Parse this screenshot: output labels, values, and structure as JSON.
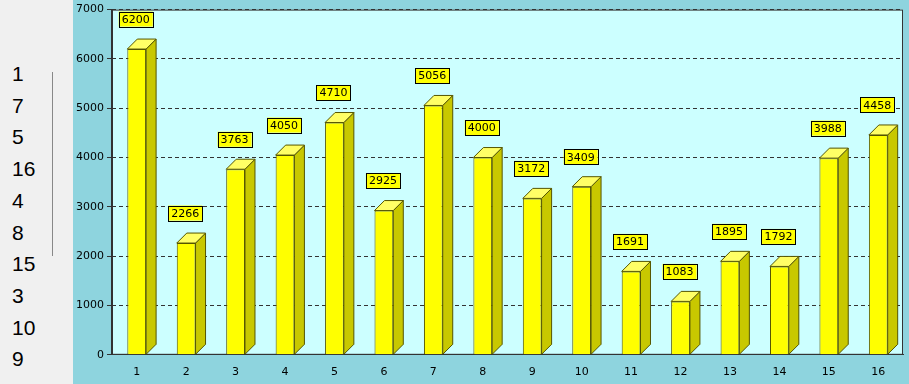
{
  "chart_data": {
    "type": "bar",
    "categories": [
      "1",
      "2",
      "3",
      "4",
      "5",
      "6",
      "7",
      "8",
      "9",
      "10",
      "11",
      "12",
      "13",
      "14",
      "15",
      "16"
    ],
    "values": [
      6200,
      2266,
      3763,
      4050,
      4710,
      2925,
      5056,
      4000,
      3172,
      3409,
      1691,
      1083,
      1895,
      1792,
      3988,
      4458
    ],
    "color": "#ffff00",
    "ylim": [
      0,
      7000
    ],
    "yticks": [
      0,
      1000,
      2000,
      3000,
      4000,
      5000,
      6000,
      7000
    ],
    "grid": true,
    "data_labels": true
  },
  "sidebar_list": [
    1,
    7,
    5,
    16,
    4,
    8,
    15,
    3,
    10,
    9
  ]
}
